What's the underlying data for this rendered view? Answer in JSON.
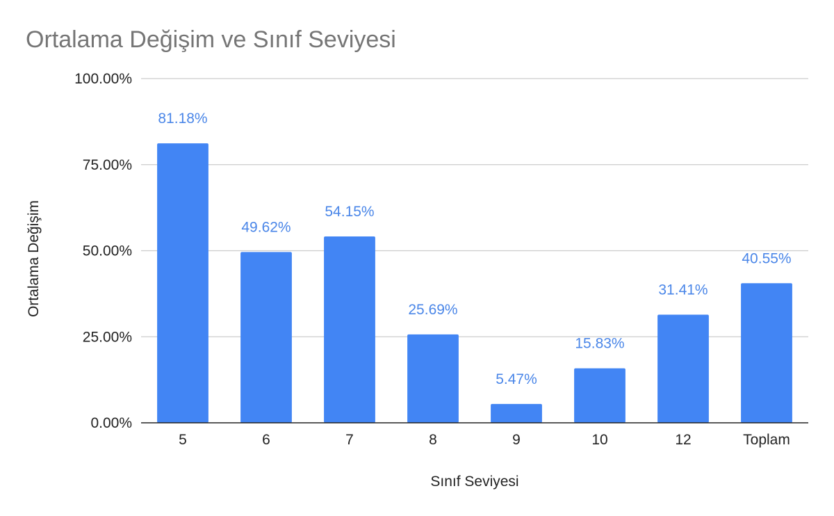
{
  "chart_data": {
    "type": "bar",
    "title": "Ortalama Değişim ve Sınıf Seviyesi",
    "xlabel": "Sınıf Seviyesi",
    "ylabel": "Ortalama Değişim",
    "categories": [
      "5",
      "6",
      "7",
      "8",
      "9",
      "10",
      "12",
      "Toplam"
    ],
    "series": [
      {
        "values": [
          81.18,
          49.62,
          54.15,
          25.69,
          5.47,
          15.83,
          31.41,
          40.55
        ],
        "labels": [
          "81.18%",
          "49.62%",
          "54.15%",
          "25.69%",
          "5.47%",
          "15.83%",
          "31.41%",
          "40.55%"
        ],
        "color": "#4285f4"
      }
    ],
    "ylim": [
      0,
      100
    ],
    "yticks": [
      0,
      25,
      50,
      75,
      100
    ],
    "ytick_labels": [
      "0.00%",
      "25.00%",
      "50.00%",
      "75.00%",
      "100.00%"
    ],
    "grid": true,
    "legend": "none",
    "colors": {
      "bar": "#4285f4",
      "label": "#4a86e8",
      "grid": "#cccccc",
      "axis": "#222222",
      "title": "#757575"
    }
  }
}
